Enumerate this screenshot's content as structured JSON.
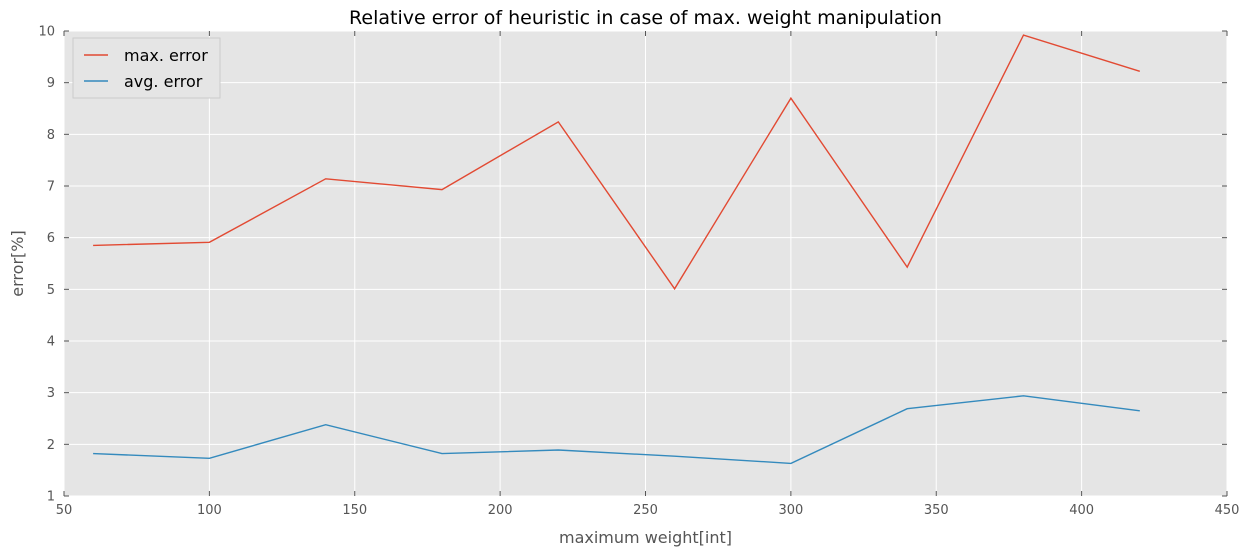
{
  "chart_data": {
    "type": "line",
    "title": "Relative error of heuristic in case of max. weight manipulation",
    "xlabel": "maximum weight[int]",
    "ylabel": "error[%]",
    "xlim": [
      50,
      450
    ],
    "ylim": [
      1,
      10
    ],
    "xticks": [
      50,
      100,
      150,
      200,
      250,
      300,
      350,
      400,
      450
    ],
    "yticks": [
      1,
      2,
      3,
      4,
      5,
      6,
      7,
      8,
      9,
      10
    ],
    "grid": true,
    "legend_position": "upper-left",
    "x": [
      60,
      100,
      140,
      180,
      220,
      260,
      300,
      340,
      380,
      420
    ],
    "series": [
      {
        "name": "max. error",
        "color": "#e24a33",
        "values": [
          5.85,
          5.91,
          7.14,
          6.93,
          8.24,
          5.01,
          8.7,
          5.43,
          9.92,
          9.22
        ]
      },
      {
        "name": "avg. error",
        "color": "#348abd",
        "values": [
          1.82,
          1.73,
          2.38,
          1.82,
          1.89,
          1.77,
          1.63,
          2.69,
          2.94,
          2.65
        ]
      }
    ]
  },
  "colors": {
    "plot_background": "#e5e5e5",
    "grid": "#ffffff",
    "text": "#555555"
  }
}
